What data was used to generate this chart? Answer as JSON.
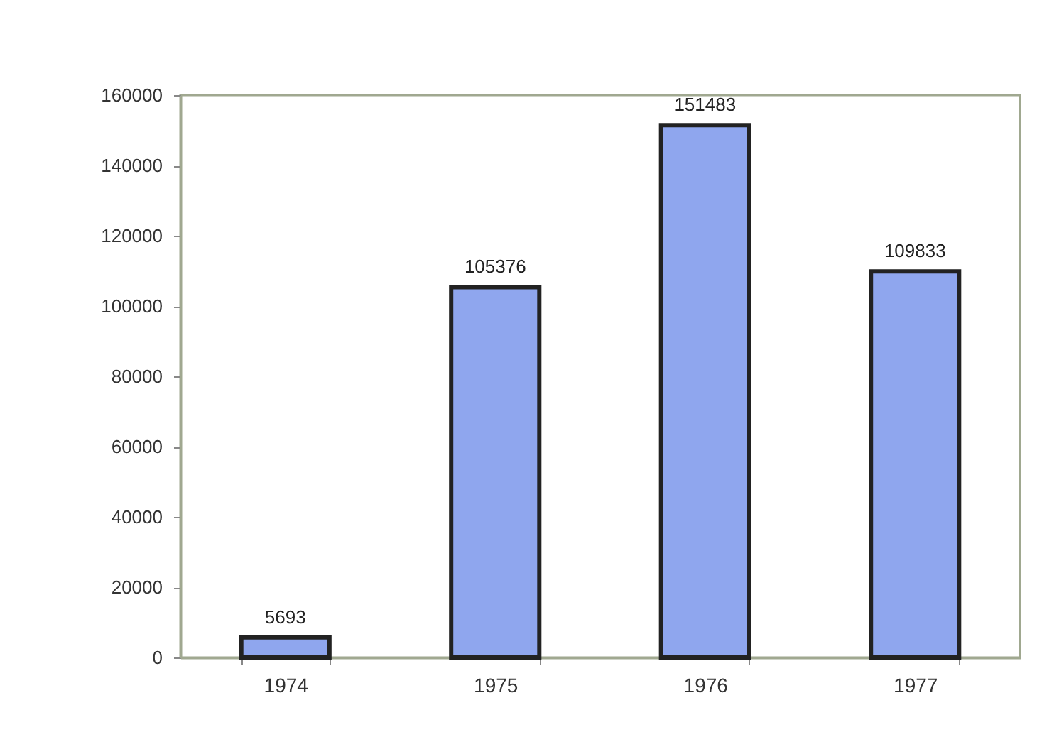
{
  "chart_data": {
    "type": "bar",
    "categories": [
      "1974",
      "1975",
      "1976",
      "1977"
    ],
    "values": [
      5693,
      105376,
      151483,
      109833
    ],
    "color": "#8fa6ee",
    "ylim": [
      0,
      160000
    ],
    "yticks": [
      0,
      20000,
      40000,
      60000,
      80000,
      100000,
      120000,
      140000,
      160000
    ],
    "grid": false,
    "data_labels": true
  }
}
